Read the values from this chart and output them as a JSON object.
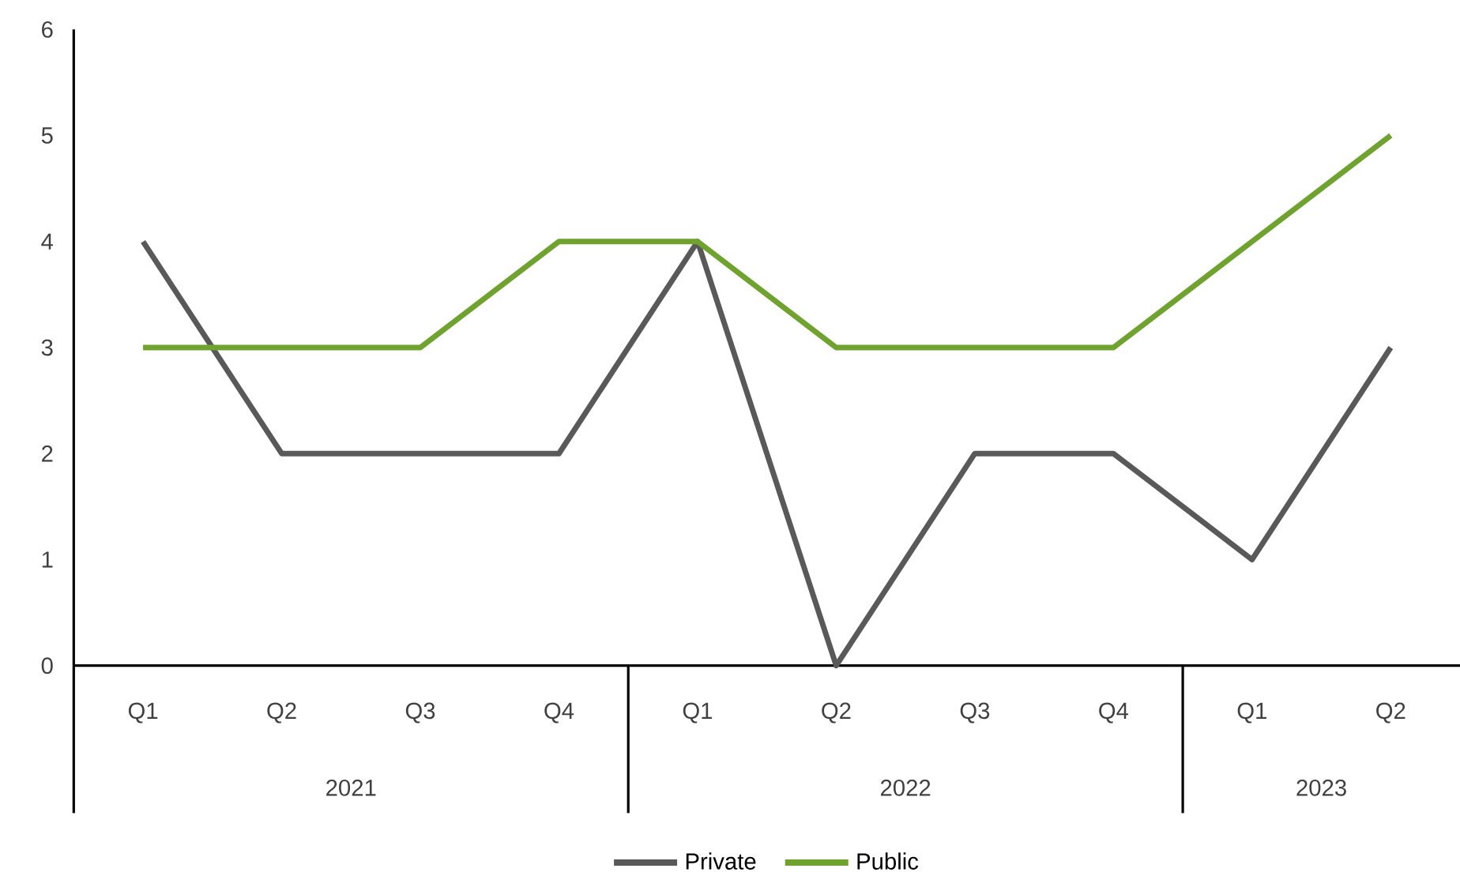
{
  "chart_data": {
    "type": "line",
    "categories": [
      "Q1",
      "Q2",
      "Q3",
      "Q4",
      "Q1",
      "Q2",
      "Q3",
      "Q4",
      "Q1",
      "Q2"
    ],
    "annotations": [
      "2021",
      "2022",
      "2023"
    ],
    "series": [
      {
        "name": "Private",
        "color": "#595959",
        "values": [
          4,
          2,
          2,
          2,
          4,
          0,
          2,
          2,
          1,
          3
        ]
      },
      {
        "name": "Public",
        "color": "#70a22f",
        "values": [
          3,
          3,
          3,
          4,
          4,
          3,
          3,
          3,
          4,
          5
        ]
      }
    ],
    "ylim": [
      0,
      6
    ],
    "yticks": [
      0,
      1,
      2,
      3,
      4,
      5,
      6
    ],
    "legend": "bottom",
    "marker": "none",
    "line_style": "solid"
  }
}
